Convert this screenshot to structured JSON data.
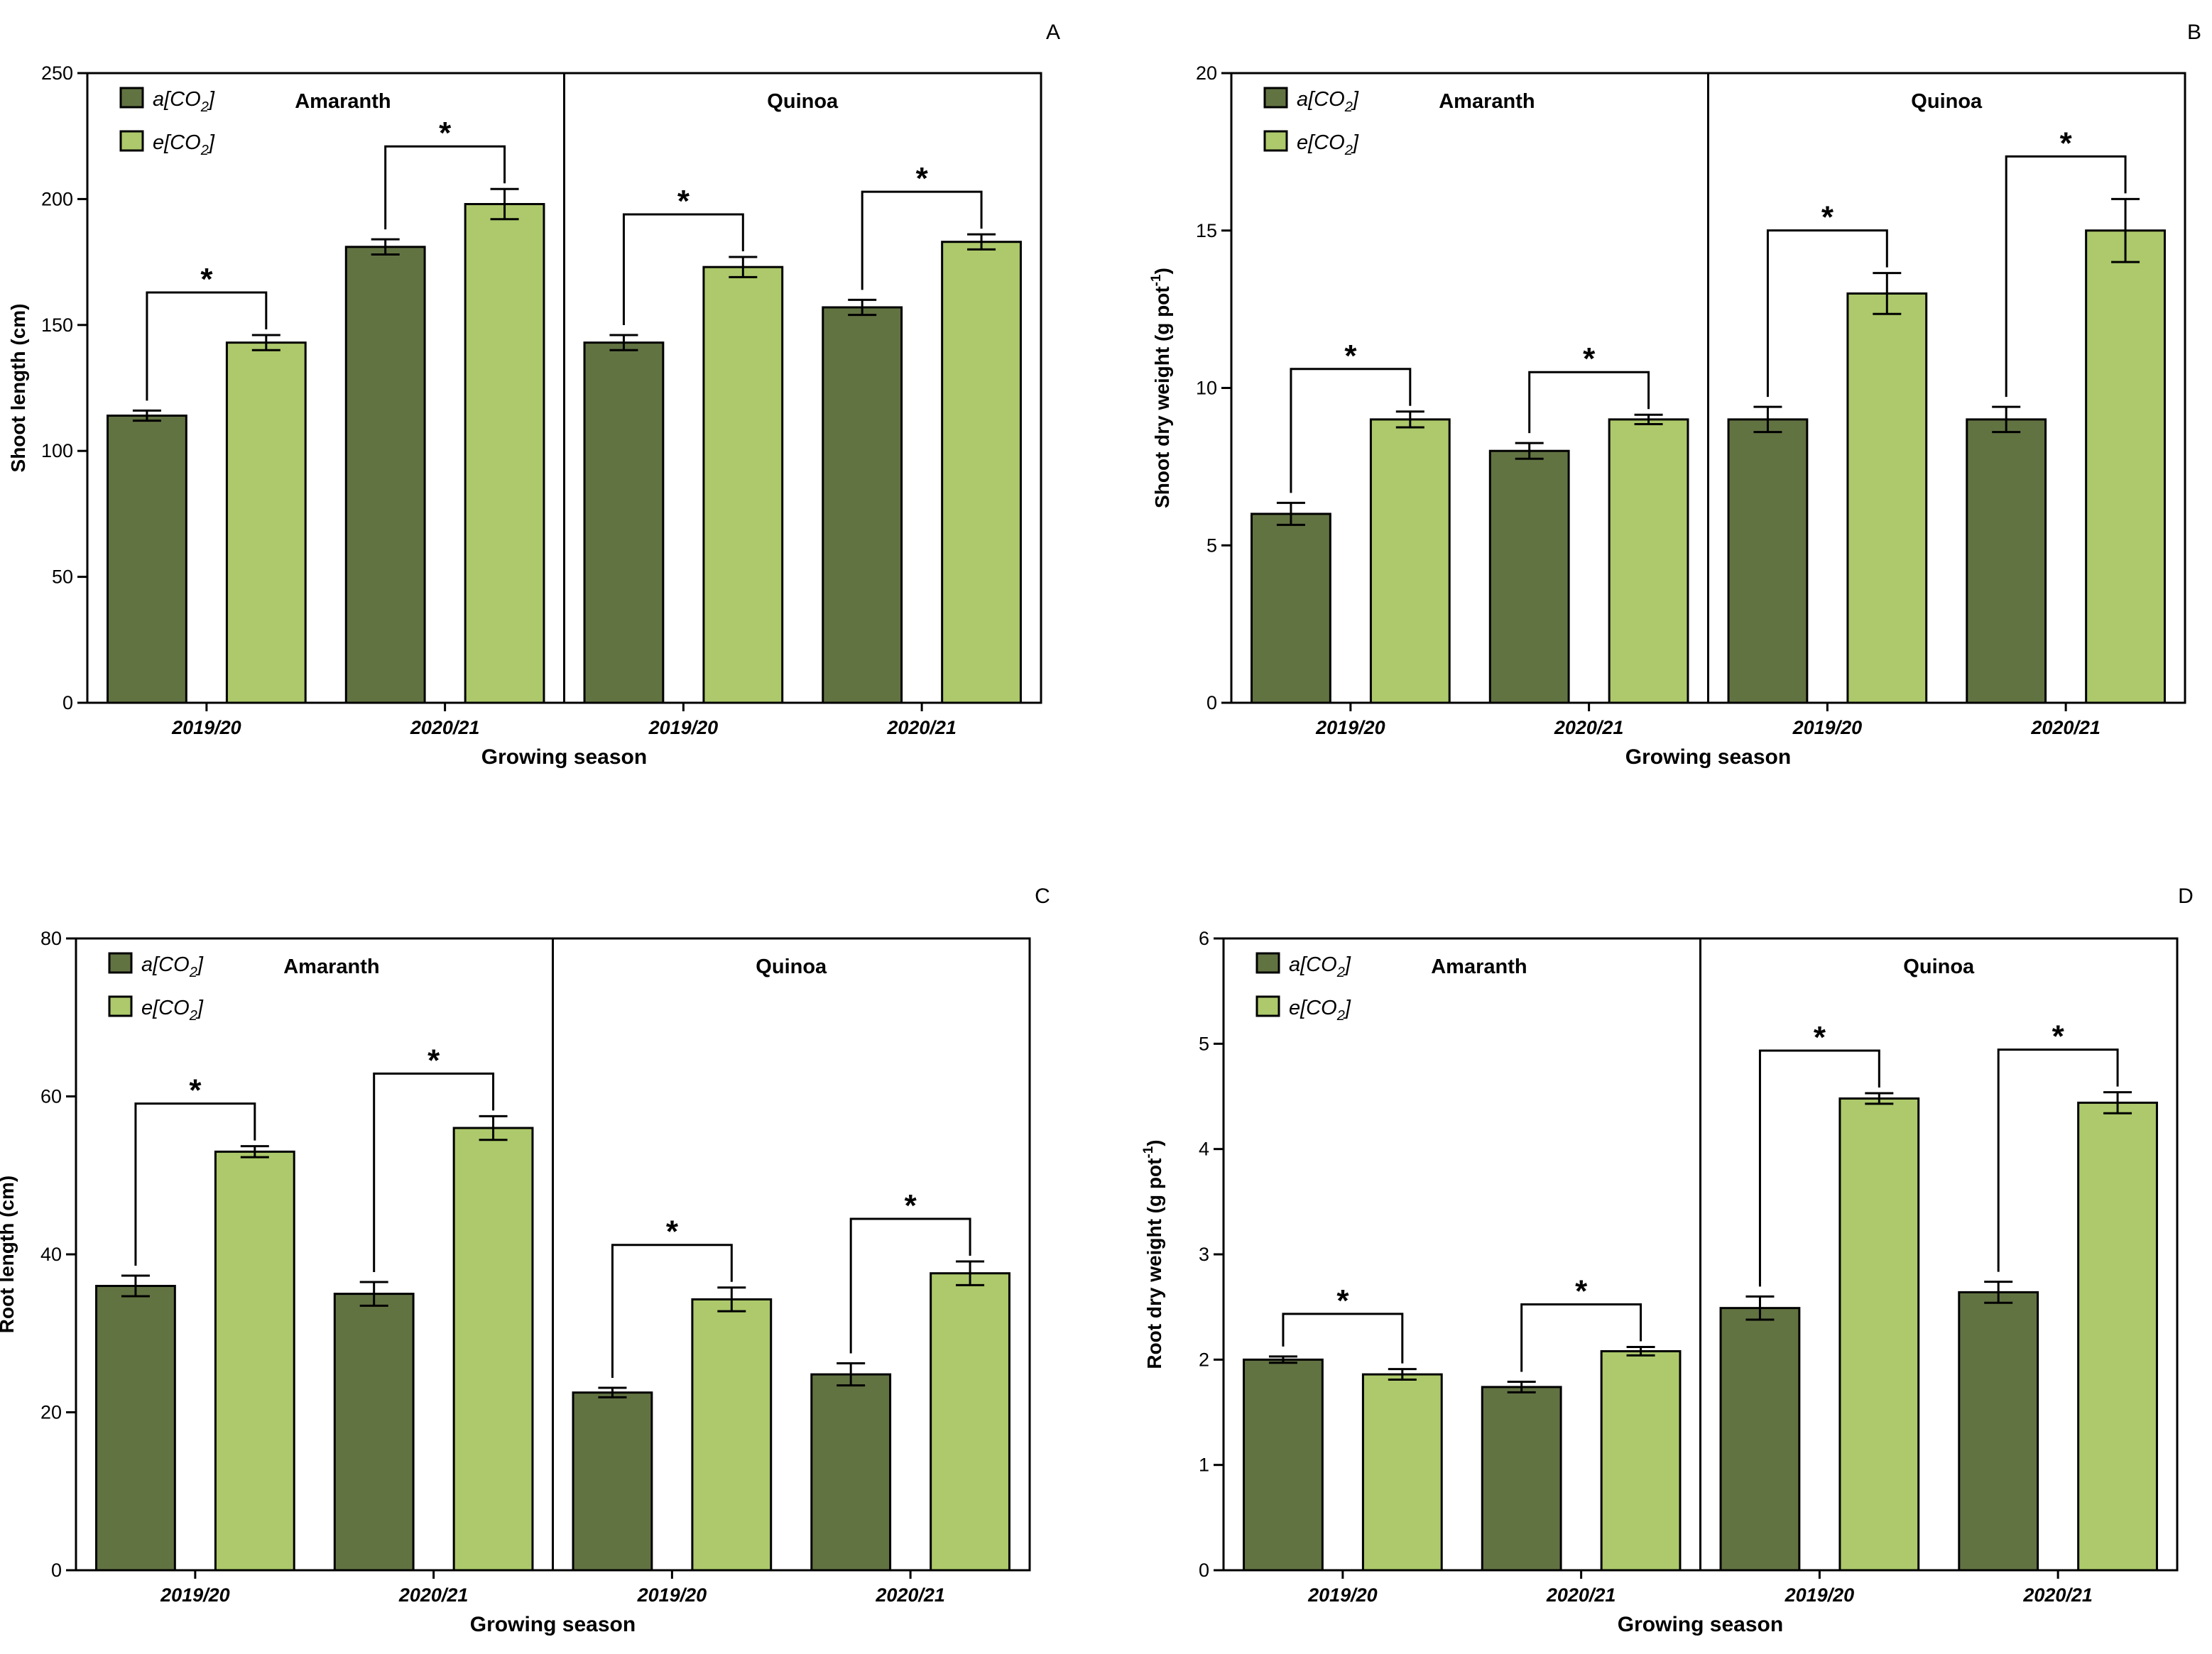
{
  "colors": {
    "ambient": "#627342",
    "elevated": "#adc96b",
    "axis": "#000000"
  },
  "legend": {
    "ambient_main": "a[CO",
    "ambient_sub": "2",
    "ambient_close": "]",
    "elevated_main": "e[CO",
    "elevated_sub": "2",
    "elevated_close": "]"
  },
  "chart_data": [
    {
      "panel": "A",
      "type": "bar",
      "ylabel": "Shoot length (cm)",
      "ylabel_sup": "",
      "ylabel_tail": "",
      "xlabel": "Growing season",
      "groups": [
        "Amaranth",
        "Quinoa"
      ],
      "categories": [
        "2019/20",
        "2020/21",
        "2019/20",
        "2020/21"
      ],
      "ylim": [
        0,
        250
      ],
      "yticks": [
        0,
        50,
        100,
        150,
        200,
        250
      ],
      "series": [
        {
          "name": "a[CO2]",
          "values": [
            114,
            181,
            143,
            157
          ],
          "errors": [
            2,
            3,
            3,
            3
          ]
        },
        {
          "name": "e[CO2]",
          "values": [
            143,
            198,
            173,
            183
          ],
          "errors": [
            3,
            6,
            4,
            3
          ]
        }
      ],
      "significance": [
        "*",
        "*",
        "*",
        "*"
      ]
    },
    {
      "panel": "B",
      "type": "bar",
      "ylabel": "Shoot  dry weight (g pot",
      "ylabel_sup": "-1",
      "ylabel_tail": ")",
      "xlabel": "Growing season",
      "groups": [
        "Amaranth",
        "Quinoa"
      ],
      "categories": [
        "2019/20",
        "2020/21",
        "2019/20",
        "2020/21"
      ],
      "ylim": [
        0,
        20
      ],
      "yticks": [
        0,
        5,
        10,
        15,
        20
      ],
      "series": [
        {
          "name": "a[CO2]",
          "values": [
            6,
            8,
            9,
            9
          ],
          "errors": [
            0.35,
            0.25,
            0.4,
            0.4
          ]
        },
        {
          "name": "e[CO2]",
          "values": [
            9,
            9,
            13,
            15
          ],
          "errors": [
            0.25,
            0.15,
            0.65,
            1.0
          ]
        }
      ],
      "significance": [
        "*",
        "*",
        "*",
        "*"
      ]
    },
    {
      "panel": "C",
      "type": "bar",
      "ylabel": "Root length (cm)",
      "ylabel_sup": "",
      "ylabel_tail": "",
      "xlabel": "Growing season",
      "groups": [
        "Amaranth",
        "Quinoa"
      ],
      "categories": [
        "2019/20",
        "2020/21",
        "2019/20",
        "2020/21"
      ],
      "ylim": [
        0,
        80
      ],
      "yticks": [
        0,
        20,
        40,
        60,
        80
      ],
      "series": [
        {
          "name": "a[CO2]",
          "values": [
            36,
            35,
            22.5,
            24.8
          ],
          "errors": [
            1.3,
            1.5,
            0.6,
            1.4
          ]
        },
        {
          "name": "e[CO2]",
          "values": [
            53,
            56,
            34.3,
            37.6
          ],
          "errors": [
            0.7,
            1.5,
            1.5,
            1.5
          ]
        }
      ],
      "significance": [
        "*",
        "*",
        "*",
        "*"
      ]
    },
    {
      "panel": "D",
      "type": "bar",
      "ylabel": "Root  dry weight (g pot",
      "ylabel_sup": "-1",
      "ylabel_tail": ")",
      "xlabel": "Growing season",
      "groups": [
        "Amaranth",
        "Quinoa"
      ],
      "categories": [
        "2019/20",
        "2020/21",
        "2019/20",
        "2020/21"
      ],
      "ylim": [
        0,
        6
      ],
      "yticks": [
        0,
        1,
        2,
        3,
        4,
        5,
        6
      ],
      "series": [
        {
          "name": "a[CO2]",
          "values": [
            2.0,
            1.74,
            2.49,
            2.64
          ],
          "errors": [
            0.03,
            0.05,
            0.11,
            0.1
          ]
        },
        {
          "name": "e[CO2]",
          "values": [
            1.86,
            2.08,
            4.48,
            4.44
          ],
          "errors": [
            0.05,
            0.04,
            0.05,
            0.1
          ]
        }
      ],
      "significance": [
        "*",
        "*",
        "*",
        "*"
      ]
    }
  ]
}
